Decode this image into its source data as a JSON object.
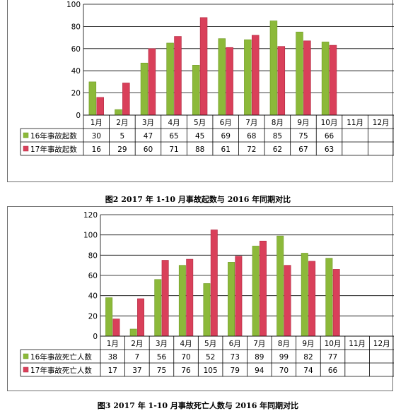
{
  "colors": {
    "series16": "#8cb93a",
    "series16_dark": "#6f9a25",
    "series17": "#d9405a",
    "series17_dark": "#b02840",
    "grid": "#000000",
    "table_line": "#000000"
  },
  "charts": [
    {
      "caption": "图2   2017 年 1-10 月事故起数与 2016 年同期对比"
    },
    {
      "caption": "图3   2017 年 1-10 月事故死亡人数与 2016 年同期对比"
    }
  ],
  "chart_data": [
    {
      "type": "bar",
      "title": "",
      "categories": [
        "1月",
        "2月",
        "3月",
        "4月",
        "5月",
        "6月",
        "7月",
        "8月",
        "9月",
        "10月",
        "11月",
        "12月"
      ],
      "series": [
        {
          "name": "16年事故起数",
          "values": [
            30,
            5,
            47,
            65,
            45,
            69,
            68,
            85,
            75,
            66,
            null,
            null
          ]
        },
        {
          "name": "17年事故起数",
          "values": [
            16,
            29,
            60,
            71,
            88,
            61,
            72,
            62,
            67,
            63,
            null,
            null
          ]
        }
      ],
      "y_ticks": [
        "0",
        "20",
        "40",
        "60",
        "80",
        "100"
      ],
      "ylim": [
        0,
        100
      ],
      "grid": true,
      "legend": "data-table"
    },
    {
      "type": "bar",
      "title": "",
      "categories": [
        "1月",
        "2月",
        "3月",
        "4月",
        "5月",
        "6月",
        "7月",
        "8月",
        "9月",
        "10月",
        "11月",
        "12月"
      ],
      "series": [
        {
          "name": "16年事故死亡人数",
          "values": [
            38,
            7,
            56,
            70,
            52,
            73,
            89,
            99,
            82,
            77,
            null,
            null
          ]
        },
        {
          "name": "17年事故死亡人数",
          "values": [
            17,
            37,
            75,
            76,
            105,
            79,
            94,
            70,
            74,
            66,
            null,
            null
          ]
        }
      ],
      "y_ticks": [
        "0",
        "20",
        "40",
        "60",
        "80",
        "100",
        "120"
      ],
      "ylim": [
        0,
        120
      ],
      "grid": true,
      "legend": "data-table"
    }
  ]
}
